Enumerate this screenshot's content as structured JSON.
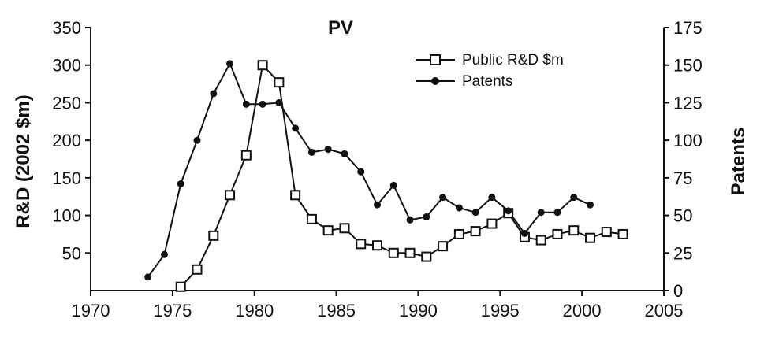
{
  "chart_data": {
    "type": "line",
    "title": "PV",
    "ylabel": "R&D (2002 $m)",
    "y2label": "Patents",
    "xlim": [
      1970,
      2005
    ],
    "ylim": [
      0,
      350
    ],
    "y2lim": [
      0,
      175
    ],
    "x_ticks": [
      "1970",
      "1975",
      "1980",
      "1985",
      "1990",
      "1995",
      "2000",
      "2005"
    ],
    "y_ticks": [
      "50",
      "100",
      "150",
      "200",
      "250",
      "300",
      "350"
    ],
    "y2_ticks": [
      "0",
      "25",
      "50",
      "75",
      "100",
      "125",
      "150",
      "175"
    ],
    "grid": false,
    "legend_position": "top-right",
    "series": [
      {
        "name": "Public R&D $m",
        "axis": "left",
        "marker": "open-square",
        "color": "#111111",
        "x": [
          1975.5,
          1976.5,
          1977.5,
          1978.5,
          1979.5,
          1980.5,
          1981.5,
          1982.5,
          1983.5,
          1984.5,
          1985.5,
          1986.5,
          1987.5,
          1988.5,
          1989.5,
          1990.5,
          1991.5,
          1992.5,
          1993.5,
          1994.5,
          1995.5,
          1996.5,
          1997.5,
          1998.5,
          1999.5,
          2000.5,
          2001.5,
          2002.5
        ],
        "values": [
          5,
          28,
          73,
          127,
          180,
          300,
          277,
          127,
          95,
          80,
          83,
          62,
          60,
          50,
          50,
          45,
          59,
          75,
          79,
          89,
          103,
          71,
          67,
          75,
          80,
          70,
          78,
          75
        ]
      },
      {
        "name": "Patents",
        "axis": "right",
        "marker": "filled-circle",
        "color": "#111111",
        "x": [
          1973.5,
          1974.5,
          1975.5,
          1976.5,
          1977.5,
          1978.5,
          1979.5,
          1980.5,
          1981.5,
          1982.5,
          1983.5,
          1984.5,
          1985.5,
          1986.5,
          1987.5,
          1988.5,
          1989.5,
          1990.5,
          1991.5,
          1992.5,
          1993.5,
          1994.5,
          1995.5,
          1996.5,
          1997.5,
          1998.5,
          1999.5,
          2000.5
        ],
        "values": [
          9,
          24,
          71,
          100,
          131,
          151,
          124,
          124,
          125,
          108,
          92,
          94,
          91,
          79,
          57,
          70,
          47,
          49,
          62,
          55,
          52,
          62,
          53,
          38,
          52,
          52,
          62,
          57
        ]
      }
    ]
  }
}
